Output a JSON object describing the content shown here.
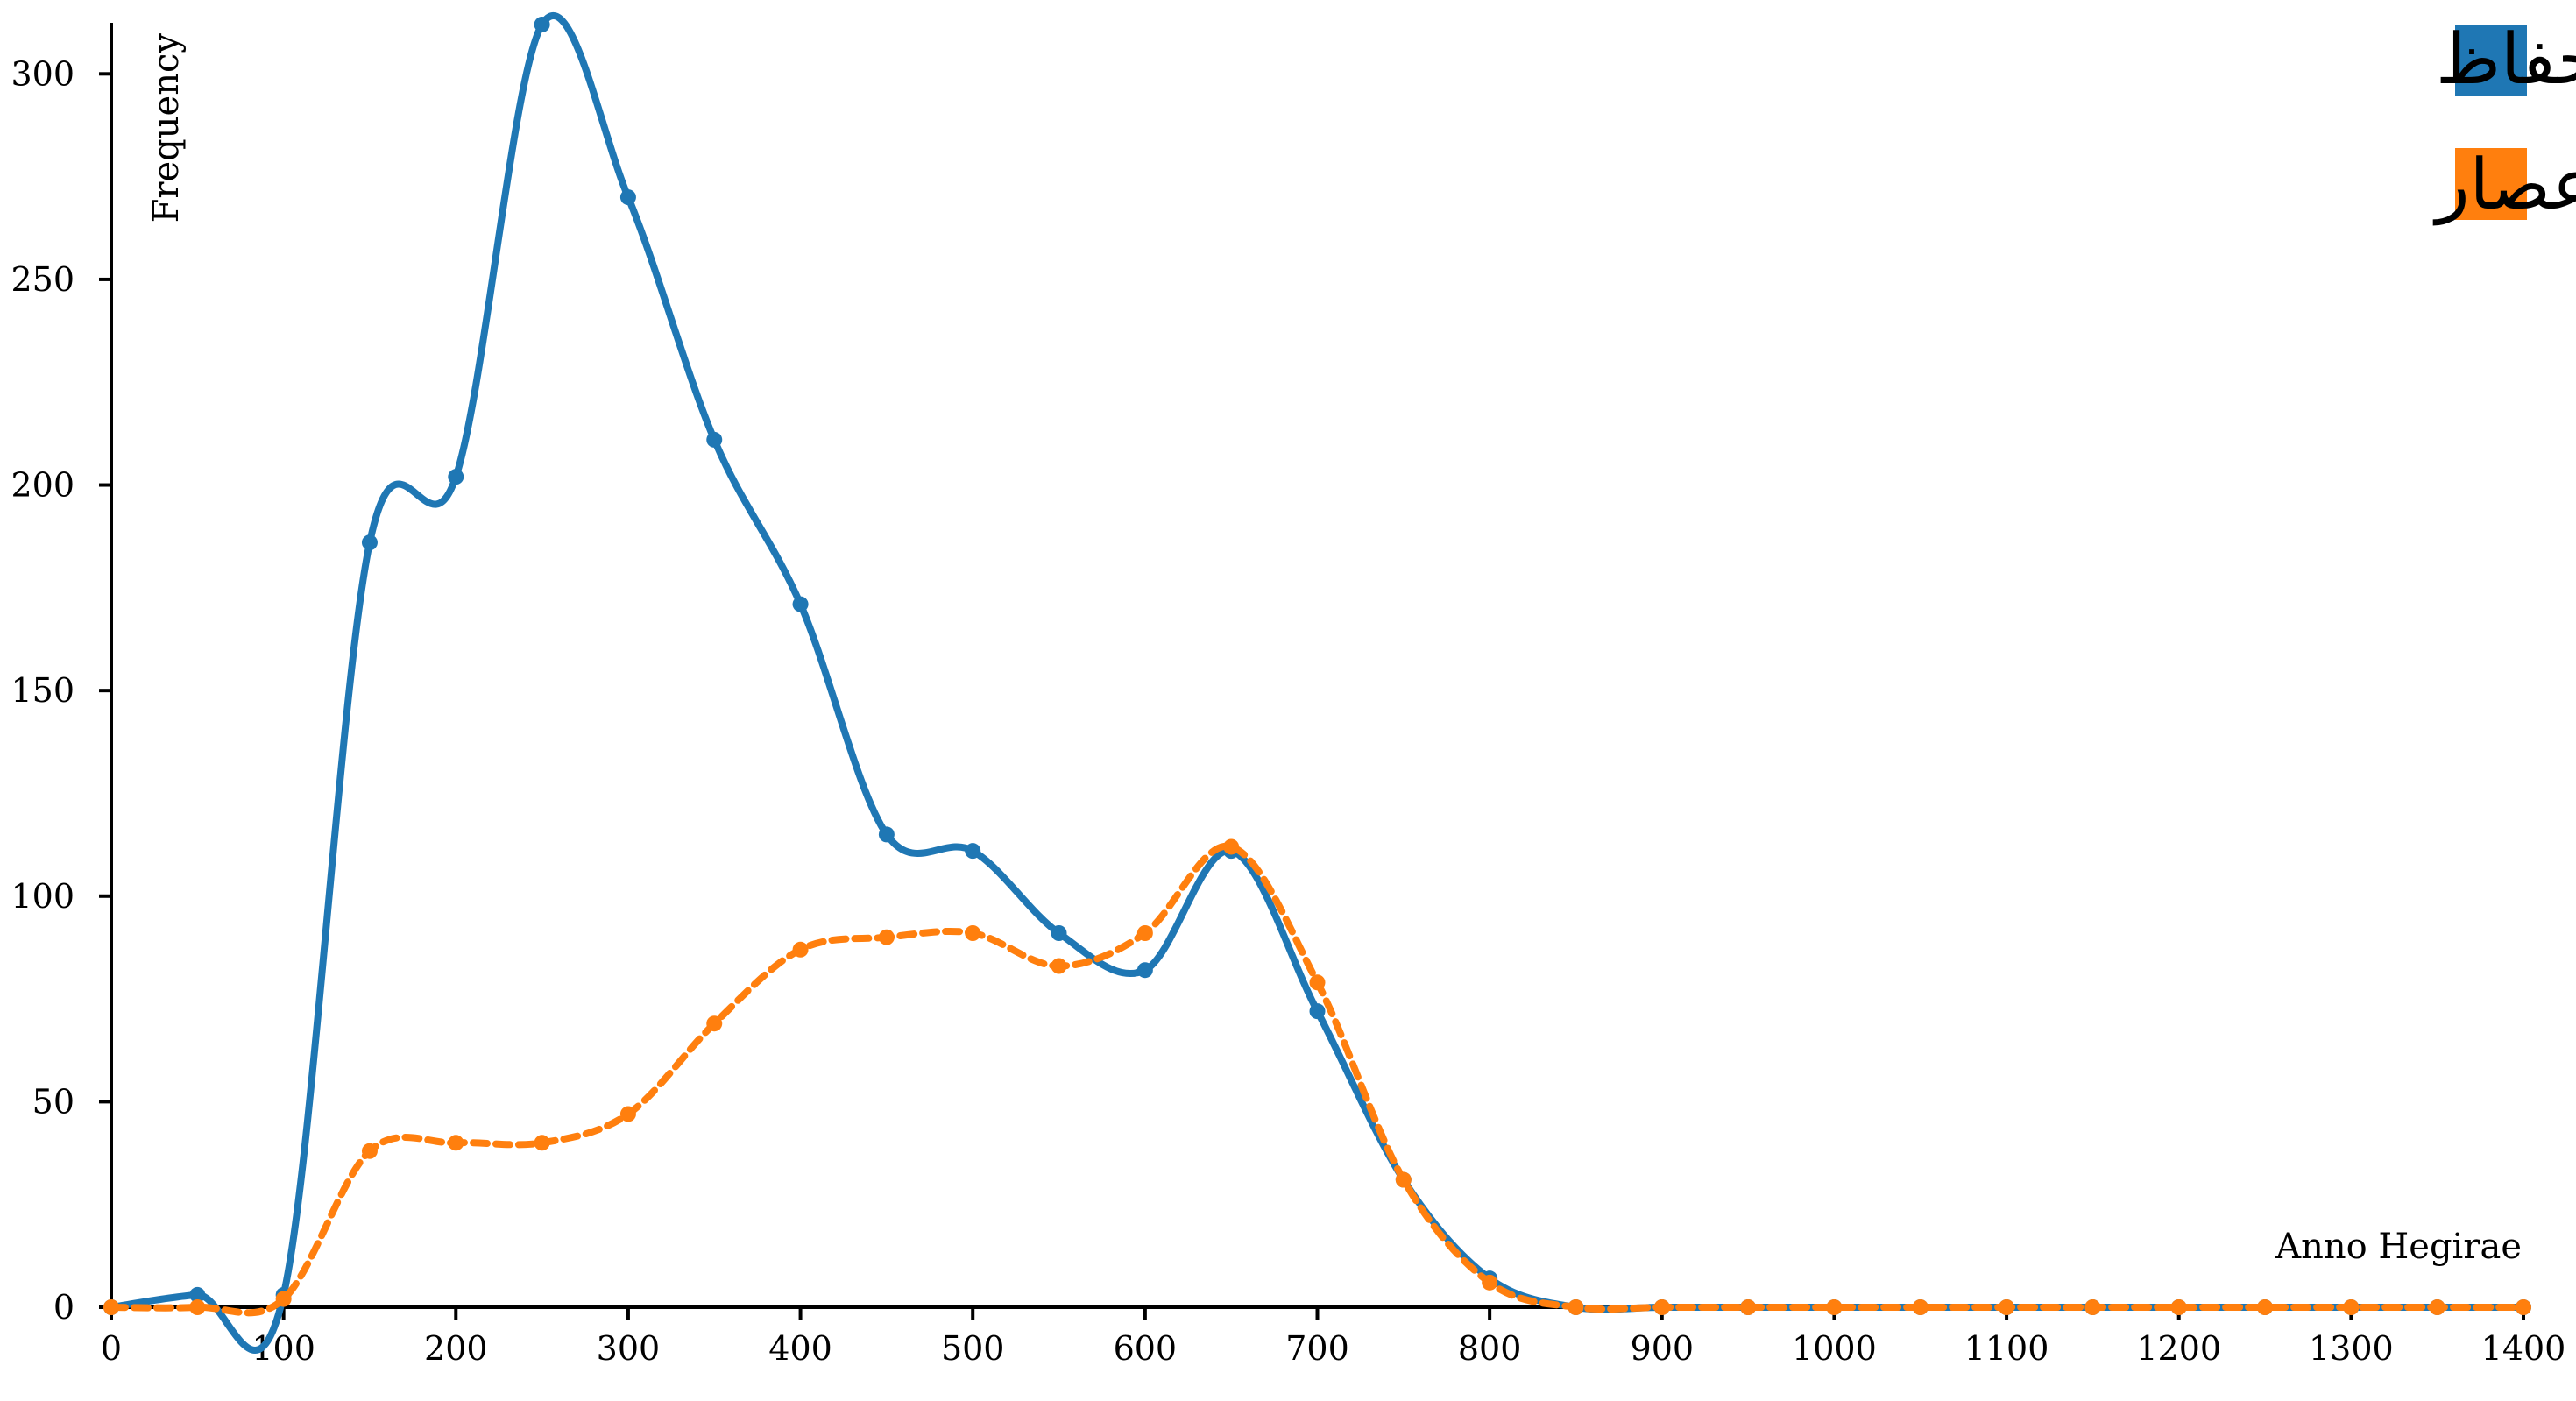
{
  "chart_data": {
    "type": "line",
    "xlabel": "Anno Hegirae",
    "ylabel": "Frequency",
    "xlim": [
      0,
      1400
    ],
    "ylim": [
      0,
      312
    ],
    "x_ticks": [
      0,
      100,
      200,
      300,
      400,
      500,
      600,
      700,
      800,
      900,
      1000,
      1100,
      1200,
      1300,
      1400
    ],
    "y_ticks": [
      0,
      50,
      100,
      150,
      200,
      250,
      300
    ],
    "x": [
      0,
      50,
      100,
      150,
      200,
      250,
      300,
      350,
      400,
      450,
      500,
      550,
      600,
      650,
      700,
      750,
      800,
      850,
      900,
      950,
      1000,
      1050,
      1100,
      1150,
      1200,
      1250,
      1300,
      1350,
      1400
    ],
    "series": [
      {
        "name": "تذكرة الحفاظ",
        "color": "#1f77b4",
        "style": "solid",
        "values": [
          0,
          3,
          3,
          186,
          202,
          312,
          270,
          211,
          171,
          115,
          111,
          91,
          82,
          111,
          72,
          31,
          7,
          0,
          0,
          0,
          0,
          0,
          0,
          0,
          0,
          0,
          0,
          0,
          0
        ]
      },
      {
        "name": "معرفة القراء الكبار على الطبقات والأعصار",
        "color": "#ff7f0e",
        "style": "dashed",
        "values": [
          0,
          0,
          2,
          38,
          40,
          40,
          47,
          69,
          87,
          90,
          91,
          83,
          91,
          112,
          79,
          31,
          6,
          0,
          0,
          0,
          0,
          0,
          0,
          0,
          0,
          0,
          0,
          0,
          0
        ]
      }
    ],
    "grid": false,
    "legend_position": "top-right"
  }
}
